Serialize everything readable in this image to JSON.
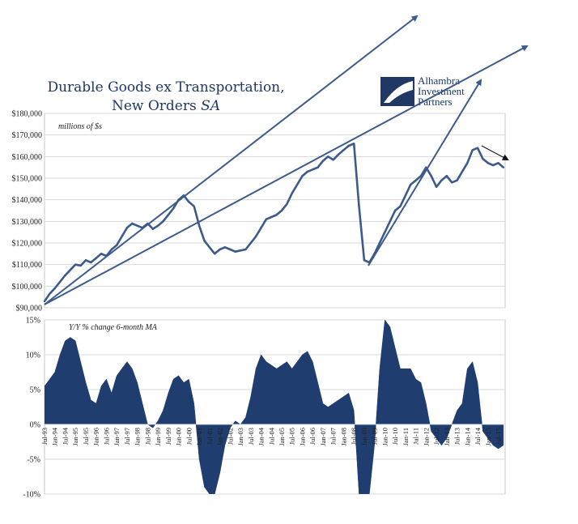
{
  "chart_data": [
    {
      "type": "line",
      "title_line1": "Durable Goods ex Transportation,",
      "title_line2_prefix": "New Orders ",
      "title_line2_suffix": "SA",
      "annotation": "millions of $s",
      "ylim": [
        90000,
        180000
      ],
      "yticks": [
        "$90,000",
        "$100,000",
        "$110,000",
        "$120,000",
        "$130,000",
        "$140,000",
        "$150,000",
        "$160,000",
        "$170,000",
        "$180,000"
      ],
      "grid": true,
      "series": [
        {
          "color": "#3c5a8a",
          "x": [
            "1993-07",
            "1993-10",
            "1994-01",
            "1994-04",
            "1994-07",
            "1994-10",
            "1995-01",
            "1995-04",
            "1995-07",
            "1995-10",
            "1996-01",
            "1996-04",
            "1996-07",
            "1996-10",
            "1997-01",
            "1997-04",
            "1997-07",
            "1997-10",
            "1998-01",
            "1998-04",
            "1998-07",
            "1998-10",
            "1999-01",
            "1999-04",
            "1999-07",
            "1999-10",
            "2000-01",
            "2000-04",
            "2000-07",
            "2000-10",
            "2001-01",
            "2001-04",
            "2001-07",
            "2001-10",
            "2002-01",
            "2002-04",
            "2002-07",
            "2002-10",
            "2003-01",
            "2003-04",
            "2003-07",
            "2003-10",
            "2004-01",
            "2004-04",
            "2004-07",
            "2004-10",
            "2005-01",
            "2005-04",
            "2005-07",
            "2005-10",
            "2006-01",
            "2006-04",
            "2006-07",
            "2006-10",
            "2007-01",
            "2007-04",
            "2007-07",
            "2007-10",
            "2008-01",
            "2008-04",
            "2008-07",
            "2008-10",
            "2009-01",
            "2009-04",
            "2009-07",
            "2009-10",
            "2010-01",
            "2010-04",
            "2010-07",
            "2010-10",
            "2011-01",
            "2011-04",
            "2011-07",
            "2011-10",
            "2012-01",
            "2012-04",
            "2012-07",
            "2012-10",
            "2013-01",
            "2013-04",
            "2013-07",
            "2013-10",
            "2014-01",
            "2014-04",
            "2014-07",
            "2014-10",
            "2015-01",
            "2015-04",
            "2015-07",
            "2015-10"
          ],
          "values": [
            93000,
            96500,
            99000,
            102000,
            105000,
            107500,
            110000,
            109500,
            112000,
            111000,
            113000,
            115000,
            114000,
            117000,
            119000,
            123000,
            127000,
            129000,
            128000,
            127000,
            129000,
            126500,
            128000,
            130000,
            133000,
            136000,
            140000,
            142000,
            139000,
            137000,
            128000,
            121000,
            118000,
            115000,
            117000,
            118000,
            117000,
            116000,
            116500,
            117000,
            120000,
            123000,
            127000,
            131000,
            132000,
            133000,
            135000,
            138000,
            143000,
            147000,
            151000,
            153000,
            154000,
            155000,
            158000,
            160000,
            158500,
            161000,
            163000,
            165000,
            166000,
            137000,
            112000,
            111000,
            115000,
            120000,
            125000,
            130000,
            135000,
            137000,
            142000,
            147000,
            149000,
            151000,
            155000,
            151000,
            146000,
            149000,
            151000,
            148000,
            149000,
            153000,
            157000,
            163000,
            164000,
            159000,
            157000,
            156000,
            157000,
            155000
          ]
        }
      ]
    },
    {
      "type": "area",
      "annotation": "Y/Y % change 6-month MA",
      "ylim": [
        -10,
        15
      ],
      "yticks": [
        "-10%",
        "-5%",
        "0%",
        "5%",
        "10%",
        "15%"
      ],
      "grid": true,
      "color": "#1f3d6e",
      "x_labels": [
        "Jul-93",
        "Jan-94",
        "Jul-94",
        "Jan-95",
        "Jul-95",
        "Jan-96",
        "Jul-96",
        "Jan-97",
        "Jul-97",
        "Jan-98",
        "Jul-98",
        "Jan-99",
        "Jul-99",
        "Jan-00",
        "Jul-00",
        "Jan-01",
        "Jul-01",
        "Jan-02",
        "Jul-02",
        "Jan-03",
        "Jul-03",
        "Jan-04",
        "Jul-04",
        "Jan-05",
        "Jul-05",
        "Jan-06",
        "Jul-06",
        "Jan-07",
        "Jul-07",
        "Jan-08",
        "Jul-08",
        "Jan-09",
        "Jul-09",
        "Jan-10",
        "Jul-10",
        "Jan-11",
        "Jul-11",
        "Jan-12",
        "Jul-12",
        "Jan-13",
        "Jul-13",
        "Jan-14",
        "Jul-14",
        "Jan-15",
        "Jul-15"
      ],
      "x": [
        "1993-07",
        "1993-10",
        "1994-01",
        "1994-04",
        "1994-07",
        "1994-10",
        "1995-01",
        "1995-04",
        "1995-07",
        "1995-10",
        "1996-01",
        "1996-04",
        "1996-07",
        "1996-10",
        "1997-01",
        "1997-04",
        "1997-07",
        "1997-10",
        "1998-01",
        "1998-04",
        "1998-07",
        "1998-10",
        "1999-01",
        "1999-04",
        "1999-07",
        "1999-10",
        "2000-01",
        "2000-04",
        "2000-07",
        "2000-10",
        "2001-01",
        "2001-04",
        "2001-07",
        "2001-10",
        "2002-01",
        "2002-04",
        "2002-07",
        "2002-10",
        "2003-01",
        "2003-04",
        "2003-07",
        "2003-10",
        "2004-01",
        "2004-04",
        "2004-07",
        "2004-10",
        "2005-01",
        "2005-04",
        "2005-07",
        "2005-10",
        "2006-01",
        "2006-04",
        "2006-07",
        "2006-10",
        "2007-01",
        "2007-04",
        "2007-07",
        "2007-10",
        "2008-01",
        "2008-04",
        "2008-07",
        "2008-10",
        "2009-01",
        "2009-04",
        "2009-07",
        "2009-10",
        "2010-01",
        "2010-04",
        "2010-07",
        "2010-10",
        "2011-01",
        "2011-04",
        "2011-07",
        "2011-10",
        "2012-01",
        "2012-04",
        "2012-07",
        "2012-10",
        "2013-01",
        "2013-04",
        "2013-07",
        "2013-10",
        "2014-01",
        "2014-04",
        "2014-07",
        "2014-10",
        "2015-01",
        "2015-04",
        "2015-07",
        "2015-10"
      ],
      "values": [
        5.5,
        6.5,
        7.5,
        10,
        12,
        12.5,
        12,
        9,
        6,
        3.5,
        3,
        5.5,
        6.5,
        4.5,
        7,
        8,
        9,
        8,
        6,
        3,
        0,
        -0.5,
        0.5,
        2,
        4.5,
        6.5,
        7,
        6,
        6.5,
        3,
        -5,
        -9,
        -10,
        -10,
        -7,
        -3,
        -0.5,
        0.5,
        0,
        1,
        4,
        8,
        10,
        9,
        8.5,
        8,
        8.5,
        9,
        8,
        9,
        10,
        10.5,
        9,
        6,
        3,
        2.5,
        3,
        3.5,
        4,
        4.5,
        2,
        -10,
        -10,
        -10,
        -3,
        8,
        15,
        14,
        11,
        8,
        8,
        8,
        6.5,
        6,
        3,
        -1,
        -2,
        -3,
        -2,
        0,
        2,
        3,
        8,
        9,
        6,
        -1,
        -2,
        -3,
        -3.5,
        -3
      ]
    }
  ],
  "logo": {
    "line1": "Alhambra",
    "line2": "Investment",
    "line3": "Partners"
  }
}
